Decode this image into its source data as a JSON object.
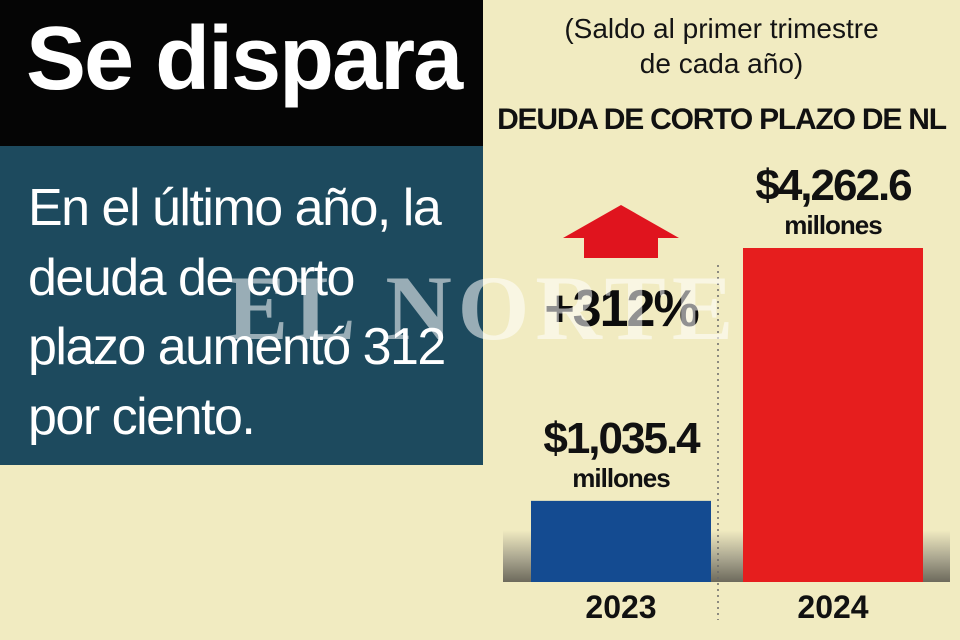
{
  "headline": "Se dispara",
  "summary": "En el último año, la deuda de corto plazo aumentó 312 por ciento.",
  "watermark": "EL NORTE",
  "chart_data": {
    "type": "bar",
    "subtitle_line1": "(Saldo al primer trimestre",
    "subtitle_line2": "de cada año)",
    "title": "DEUDA DE CORTO PLAZO DE NL",
    "categories": [
      "2023",
      "2024"
    ],
    "values": [
      1035.4,
      4262.6
    ],
    "value_labels": [
      "$1,035.4",
      "$4,262.6"
    ],
    "unit_label": "millones",
    "change_label": "+312%",
    "colors": [
      "#144b91",
      "#e61e1e"
    ],
    "arrow_color": "#e0141e"
  }
}
